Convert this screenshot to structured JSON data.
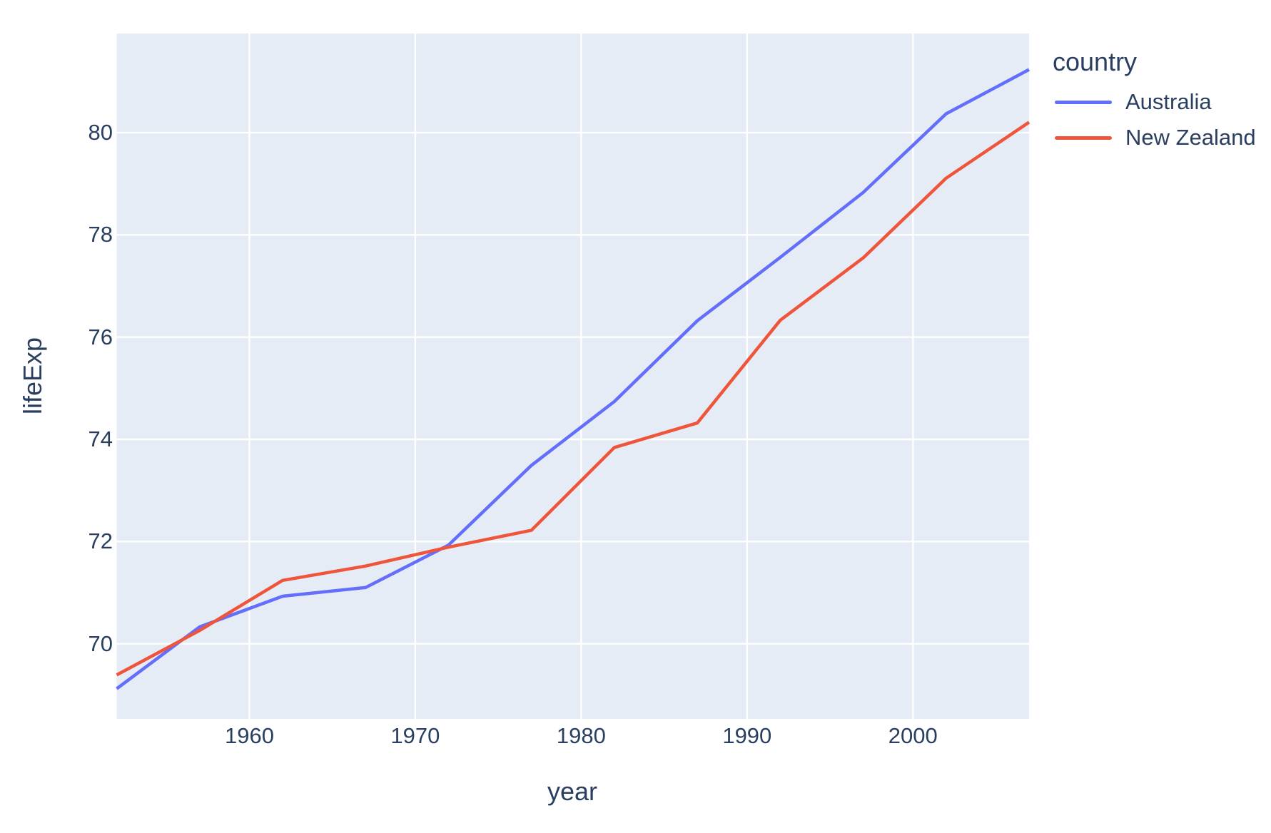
{
  "chart_data": {
    "type": "line",
    "title": "",
    "xlabel": "year",
    "ylabel": "lifeExp",
    "legend_title": "country",
    "legend_position": "right",
    "grid": true,
    "x": [
      1952,
      1957,
      1962,
      1967,
      1972,
      1977,
      1982,
      1987,
      1992,
      1997,
      2002,
      2007
    ],
    "series": [
      {
        "name": "Australia",
        "color": "#636EFA",
        "values": [
          69.12,
          70.33,
          70.93,
          71.1,
          71.93,
          73.49,
          74.74,
          76.32,
          77.56,
          78.83,
          80.37,
          81.235
        ]
      },
      {
        "name": "New Zealand",
        "color": "#EF553B",
        "values": [
          69.39,
          70.26,
          71.24,
          71.52,
          71.89,
          72.22,
          73.84,
          74.32,
          76.33,
          77.55,
          79.11,
          80.204
        ]
      }
    ],
    "xlim": [
      1952,
      2007
    ],
    "ylim": [
      68.53,
      81.94
    ],
    "xticks": [
      1960,
      1970,
      1980,
      1990,
      2000
    ],
    "yticks": [
      70,
      72,
      74,
      76,
      78,
      80
    ],
    "colors": {
      "plot_bg": "#E5ECF6",
      "grid": "#FFFFFF",
      "text": "#2A3F5F",
      "paper_bg": "#FFFFFF",
      "australia": "#636EFA",
      "new_zealand": "#EF553B"
    }
  }
}
